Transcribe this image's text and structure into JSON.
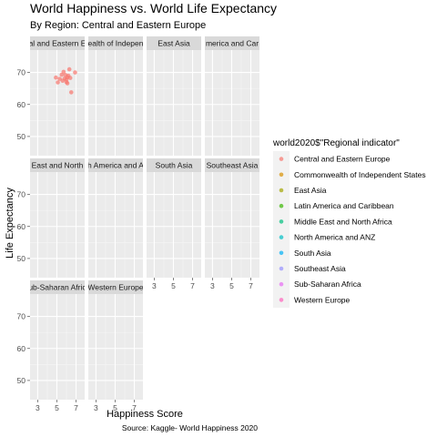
{
  "chart_data": {
    "type": "scatter",
    "title": "World Happiness vs. World Life Expectancy",
    "subtitle": "By Region: Central and Eastern Europe",
    "xlabel": "Happiness Score",
    "ylabel": "Life Expectancy",
    "caption": "Source: Kaggle- World Happiness 2020",
    "xlim": [
      2.2,
      7.9
    ],
    "ylim": [
      44,
      77
    ],
    "xticks": [
      3,
      5,
      7
    ],
    "yticks": [
      50,
      60,
      70
    ],
    "legend": {
      "title": "world2020$\"Regional indicator\"",
      "position": "right"
    },
    "facets": [
      {
        "label": "Central and Eastern Europe",
        "display": "al and Eastern E",
        "color": "#F8766D"
      },
      {
        "label": "Commonwealth of Independent States",
        "display": "ealth of Indepen",
        "color": "#D89000"
      },
      {
        "label": "East Asia",
        "display": "East Asia",
        "color": "#A3A500"
      },
      {
        "label": "Latin America and Caribbean",
        "display": "merica and Car",
        "color": "#39B600"
      },
      {
        "label": "Middle East and North Africa",
        "display": "East and North",
        "color": "#00BF7D"
      },
      {
        "label": "North America and ANZ",
        "display": "h America and A",
        "color": "#00BFC4"
      },
      {
        "label": "South Asia",
        "display": "South Asia",
        "color": "#00B0F6"
      },
      {
        "label": "Southeast Asia",
        "display": "Southeast Asia",
        "color": "#9590FF"
      },
      {
        "label": "Sub-Saharan Africa",
        "display": "ub-Saharan Afric",
        "color": "#E76BF3"
      },
      {
        "label": "Western Europe",
        "display": "Western Europe",
        "color": "#FF62BC"
      }
    ],
    "series": [
      {
        "name": "Central and Eastern Europe",
        "points": [
          {
            "x": 4.9,
            "y": 68.4
          },
          {
            "x": 5.1,
            "y": 66.9
          },
          {
            "x": 5.3,
            "y": 68.0
          },
          {
            "x": 5.5,
            "y": 69.3
          },
          {
            "x": 5.6,
            "y": 67.4
          },
          {
            "x": 5.8,
            "y": 68.1
          },
          {
            "x": 5.9,
            "y": 69.2
          },
          {
            "x": 6.0,
            "y": 67.0
          },
          {
            "x": 6.1,
            "y": 68.5
          },
          {
            "x": 6.2,
            "y": 69.0
          },
          {
            "x": 6.3,
            "y": 71.0
          },
          {
            "x": 6.4,
            "y": 68.3
          },
          {
            "x": 6.1,
            "y": 66.6
          },
          {
            "x": 6.5,
            "y": 63.8
          },
          {
            "x": 5.7,
            "y": 70.2
          },
          {
            "x": 6.9,
            "y": 70.0
          },
          {
            "x": 6.0,
            "y": 67.8
          }
        ]
      }
    ]
  }
}
